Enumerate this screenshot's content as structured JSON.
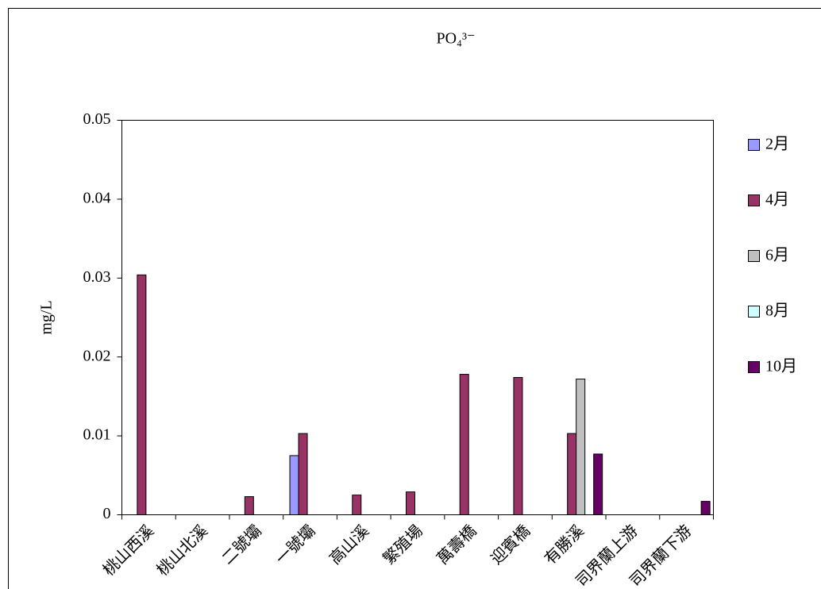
{
  "chart_data": {
    "type": "bar",
    "title": "PO₄³⁻",
    "y_label": "mg/L",
    "categories": [
      "桃山西溪",
      "桃山北溪",
      "二號壩",
      "一號壩",
      "高山溪",
      "繁殖場",
      "萬壽橋",
      "迎賓橋",
      "有勝溪",
      "司界蘭上游",
      "司界蘭下游"
    ],
    "series": [
      {
        "name": "2月",
        "color": "#9999ff",
        "values": [
          null,
          null,
          null,
          0.0075,
          null,
          null,
          null,
          null,
          null,
          null,
          null
        ]
      },
      {
        "name": "4月",
        "color": "#993366",
        "values": [
          0.0304,
          null,
          0.0023,
          0.0103,
          0.0025,
          0.0029,
          0.0178,
          0.0174,
          0.0103,
          null,
          null
        ]
      },
      {
        "name": "6月",
        "color": "#c0c0c0",
        "values": [
          null,
          null,
          null,
          null,
          null,
          null,
          null,
          null,
          0.0172,
          null,
          null
        ]
      },
      {
        "name": "8月",
        "color": "#ccffff",
        "values": [
          null,
          null,
          null,
          null,
          null,
          null,
          null,
          null,
          null,
          null,
          null
        ]
      },
      {
        "name": "10月",
        "color": "#660066",
        "values": [
          null,
          null,
          null,
          null,
          null,
          null,
          null,
          null,
          0.0077,
          null,
          0.0017
        ]
      }
    ],
    "ylim": [
      0,
      0.05
    ],
    "yticks": [
      0,
      0.01,
      0.02,
      0.03,
      0.04,
      0.05
    ],
    "grid": false,
    "legend": "right"
  }
}
